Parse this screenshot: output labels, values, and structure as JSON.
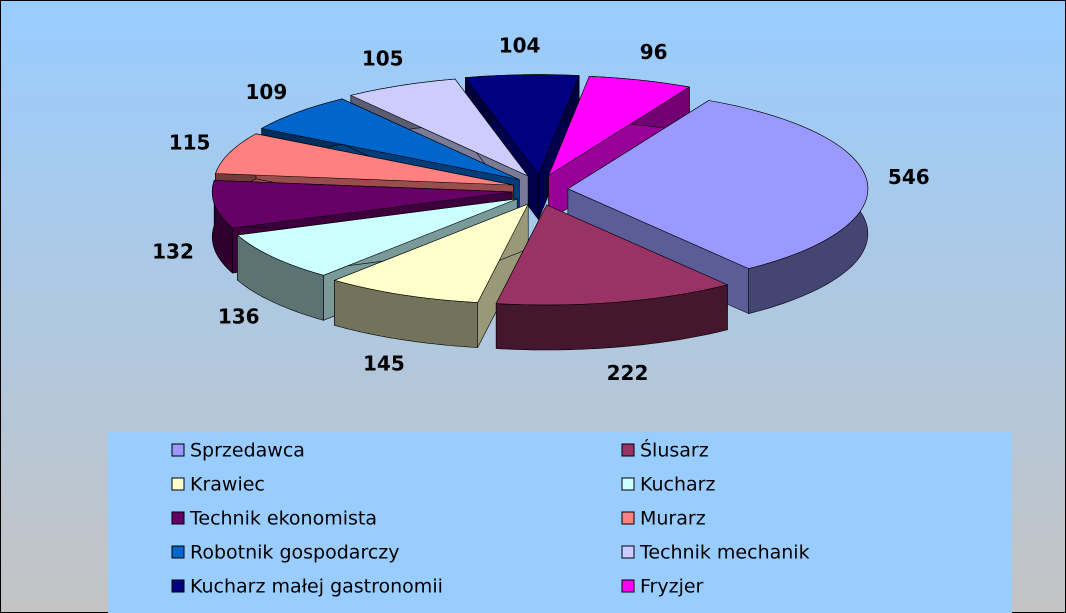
{
  "chart_data": {
    "type": "pie",
    "categories": [
      "Sprzedawca",
      "Ślusarz",
      "Krawiec",
      "Kucharz",
      "Technik ekonomista",
      "Murarz",
      "Robotnik gospodarczy",
      "Technik mechanik",
      "Kucharz małej gastronomii",
      "Fryzjer"
    ],
    "values": [
      546,
      222,
      145,
      136,
      132,
      115,
      109,
      105,
      104,
      96
    ],
    "colors": [
      "#9999ff",
      "#993366",
      "#ffffcc",
      "#ccffff",
      "#660066",
      "#ff8080",
      "#0066cc",
      "#ccccff",
      "#000080",
      "#ff00ff"
    ],
    "legend": "bottom"
  }
}
